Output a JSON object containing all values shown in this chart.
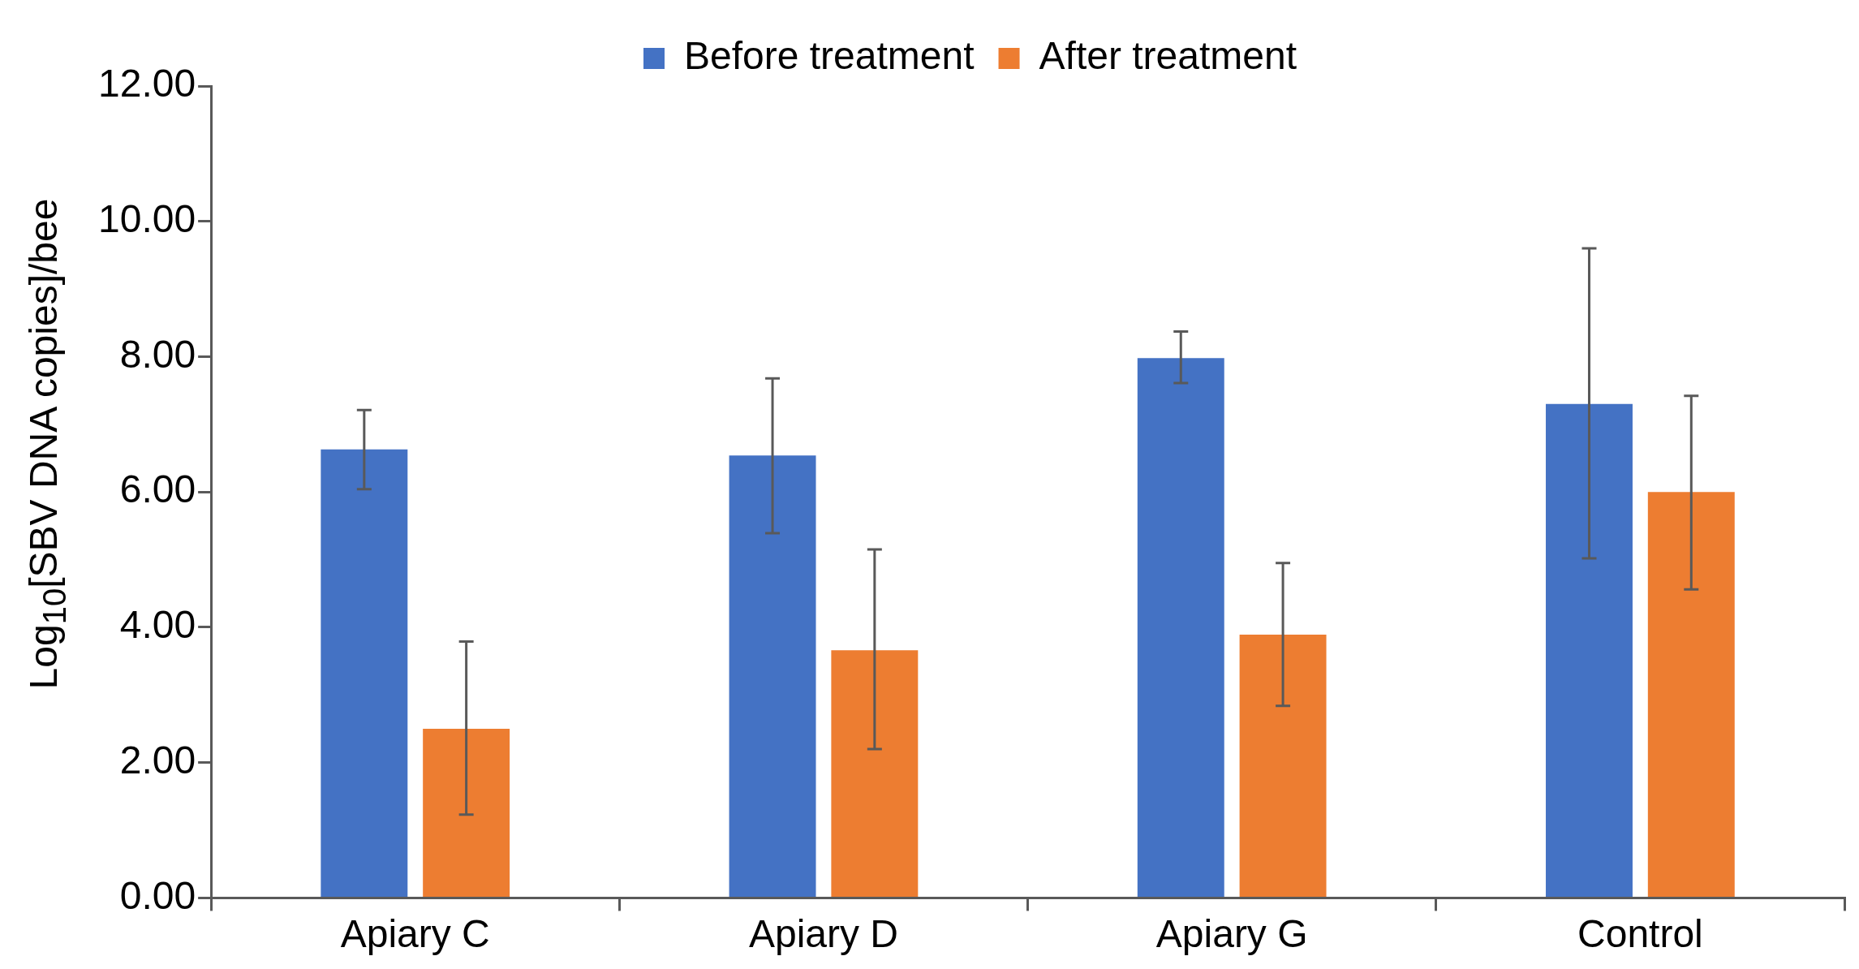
{
  "chart_data": {
    "type": "bar",
    "ylabel": "Log$_{10}$[SBV DNA copies]/bee",
    "categories": [
      "Apiary C",
      "Apiary D",
      "Apiary G",
      "Control"
    ],
    "series": [
      {
        "name": "Before treatment",
        "color": "#4472c4",
        "values": [
          6.63,
          6.54,
          7.98,
          7.3
        ],
        "errors": [
          [
            6.04,
            7.21
          ],
          [
            5.39,
            7.68
          ],
          [
            7.61,
            8.37
          ],
          [
            5.02,
            9.6
          ]
        ]
      },
      {
        "name": "After treatment",
        "color": "#ed7d31",
        "values": [
          2.5,
          3.66,
          3.89,
          6.0
        ],
        "errors": [
          [
            1.23,
            3.79
          ],
          [
            2.2,
            5.15
          ],
          [
            2.84,
            4.95
          ],
          [
            4.56,
            7.42
          ]
        ]
      }
    ],
    "ylim": [
      0,
      12
    ],
    "yticks": [
      {
        "value": 0,
        "label": "0.00"
      },
      {
        "value": 2,
        "label": "2.00"
      },
      {
        "value": 4,
        "label": "4.00"
      },
      {
        "value": 6,
        "label": "6.00"
      },
      {
        "value": 8,
        "label": "8.00"
      },
      {
        "value": 10,
        "label": "10.00"
      },
      {
        "value": 12,
        "label": "12.00"
      }
    ],
    "grid": false,
    "legend": "top"
  }
}
